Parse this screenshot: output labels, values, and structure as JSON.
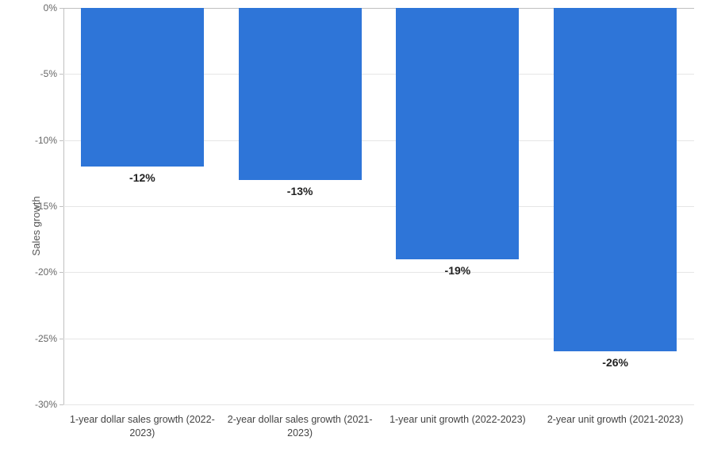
{
  "chart": {
    "type": "bar",
    "ylabel": "Sales growth",
    "ylabel_fontsize": 13,
    "ylim_min": -30,
    "ylim_max": 0,
    "ytick_step": 5,
    "ytick_suffix": "%",
    "background_color": "#ffffff",
    "grid_color": "#e6e6e6",
    "axis_line_color": "#c0c0c0",
    "bar_color": "#2e75d8",
    "bar_width_pct": 78,
    "label_fontsize": 12,
    "data_label_fontsize": 14,
    "data_label_fontweight": 700,
    "data_label_color": "#222222",
    "yticks": [
      {
        "value": 0,
        "label": "0%"
      },
      {
        "value": -5,
        "label": "-5%"
      },
      {
        "value": -10,
        "label": "-10%"
      },
      {
        "value": -15,
        "label": "-15%"
      },
      {
        "value": -20,
        "label": "-20%"
      },
      {
        "value": -25,
        "label": "-25%"
      },
      {
        "value": -30,
        "label": "-30%"
      }
    ],
    "categories": [
      "1-year dollar sales growth (2022-2023)",
      "2-year dollar sales growth (2021-2023)",
      "1-year unit growth (2022-2023)",
      "2-year unit growth (2021-2023)"
    ],
    "series": [
      {
        "value": -12,
        "label": "-12%"
      },
      {
        "value": -13,
        "label": "-13%"
      },
      {
        "value": -19,
        "label": "-19%"
      },
      {
        "value": -26,
        "label": "-26%"
      }
    ]
  }
}
